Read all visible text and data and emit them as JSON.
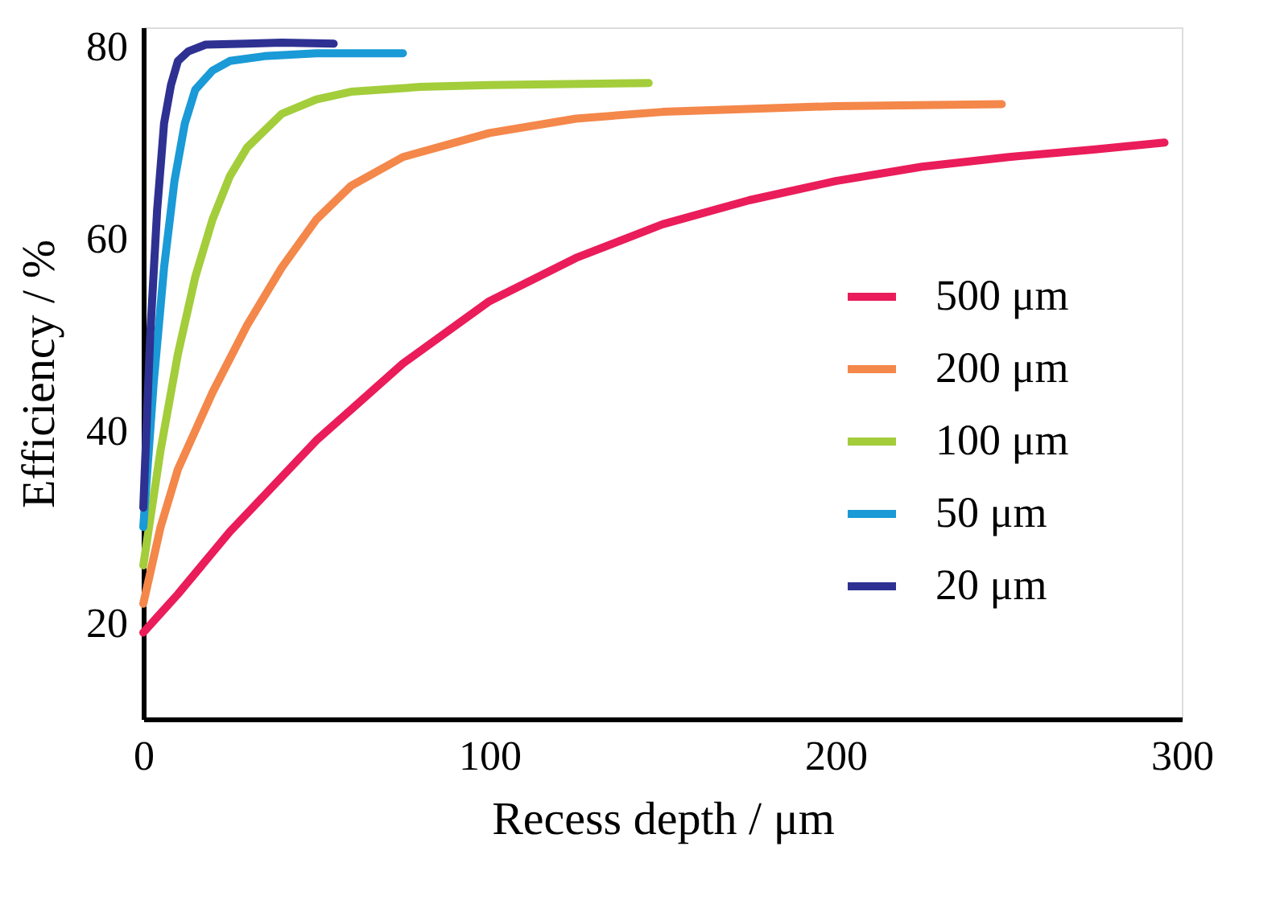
{
  "chart_data": {
    "type": "line",
    "xlabel": "Recess depth / μm",
    "ylabel": "Efficiency / %",
    "xlim": [
      0,
      300
    ],
    "xticks": [
      0,
      100,
      200,
      300
    ],
    "ylim": [
      10,
      82
    ],
    "yticks": [
      20,
      40,
      60,
      80
    ],
    "grid": false,
    "legend": "right",
    "marker": "none",
    "line_style": "solid",
    "series": [
      {
        "name": "500 μm",
        "color": "#ea1c5a",
        "x": [
          0,
          10,
          25,
          50,
          75,
          100,
          125,
          150,
          175,
          200,
          225,
          250,
          275,
          295
        ],
        "values": [
          19,
          23,
          29.5,
          39,
          47,
          53.5,
          58,
          61.5,
          64,
          66,
          67.5,
          68.5,
          69.3,
          70
        ]
      },
      {
        "name": "200 μm",
        "color": "#f4874a",
        "x": [
          0,
          5,
          10,
          20,
          30,
          40,
          50,
          60,
          75,
          100,
          125,
          150,
          200,
          248
        ],
        "values": [
          22,
          30,
          36,
          44,
          51,
          57,
          62,
          65.5,
          68.5,
          71,
          72.5,
          73.2,
          73.8,
          74
        ]
      },
      {
        "name": "100 μm",
        "color": "#a3cd3b",
        "x": [
          0,
          5,
          10,
          15,
          20,
          25,
          30,
          40,
          50,
          60,
          80,
          100,
          146
        ],
        "values": [
          26,
          38,
          48,
          56,
          62,
          66.5,
          69.5,
          73,
          74.5,
          75.3,
          75.8,
          76,
          76.2
        ]
      },
      {
        "name": "50 μm",
        "color": "#1a9ad6",
        "x": [
          0,
          3,
          6,
          9,
          12,
          15,
          20,
          25,
          35,
          50,
          75
        ],
        "values": [
          30,
          45,
          57,
          66,
          72,
          75.5,
          77.5,
          78.5,
          79,
          79.3,
          79.3
        ]
      },
      {
        "name": "20 μm",
        "color": "#2e3192",
        "x": [
          0,
          2,
          4,
          6,
          8,
          10,
          13,
          18,
          30,
          40,
          55
        ],
        "values": [
          32,
          50,
          63,
          72,
          76,
          78.5,
          79.5,
          80.2,
          80.3,
          80.4,
          80.3
        ]
      }
    ]
  }
}
